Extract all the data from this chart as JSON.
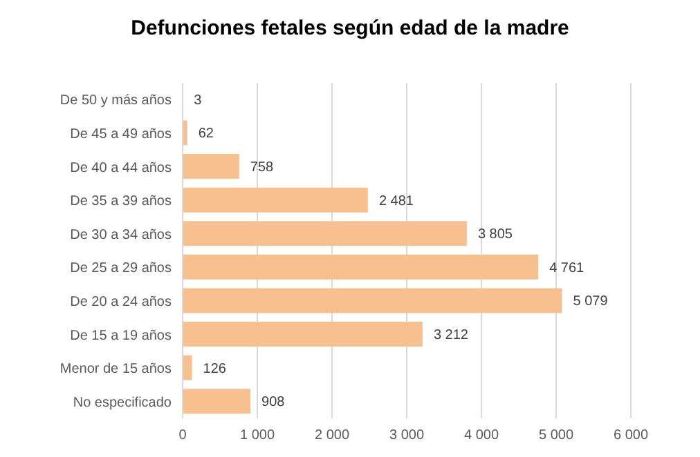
{
  "chart_data": {
    "type": "bar",
    "orientation": "horizontal",
    "title": "Defunciones fetales según edad de la madre",
    "categories": [
      "De 50 y más años",
      "De 45 a 49 años",
      "De 40 a 44 años",
      "De 35 a 39 años",
      "De 30 a 34 años",
      "De 25 a 29 años",
      "De 20 a 24 años",
      "De 15 a 19 años",
      "Menor de 15 años",
      "No especificado"
    ],
    "values": [
      3,
      62,
      758,
      2481,
      3805,
      4761,
      5079,
      3212,
      126,
      908
    ],
    "value_labels": [
      "3",
      "62",
      "758",
      "2 481",
      "3 805",
      "4 761",
      "5 079",
      "3 212",
      "126",
      "908"
    ],
    "color": "#f8c08e",
    "xlim": [
      0,
      6000
    ],
    "xticks": [
      0,
      {
        "value": 1000,
        "label": "1 000"
      },
      {
        "value": 2000,
        "label": "2 000"
      },
      {
        "value": 3000,
        "label": "3 000"
      },
      {
        "value": 4000,
        "label": "4 000"
      },
      {
        "value": 5000,
        "label": "5 000"
      },
      {
        "value": 6000,
        "label": "6 000"
      }
    ],
    "grid": "x"
  }
}
